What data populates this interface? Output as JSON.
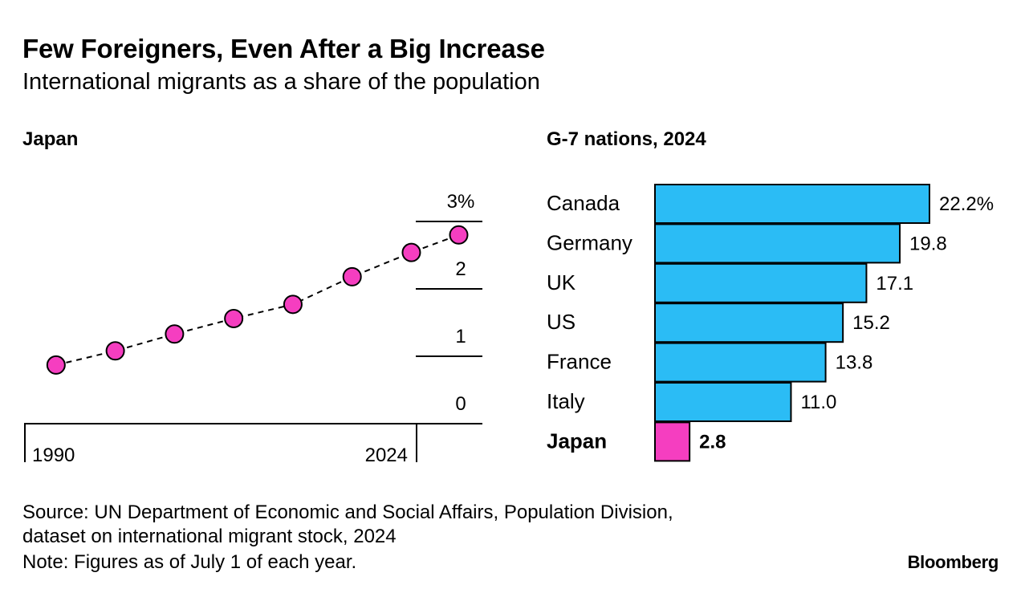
{
  "title": "Few Foreigners, Even After a Big Increase",
  "subtitle": "International migrants as a share of the population",
  "source_line1": "Source: UN Department of Economic and Social Affairs, Population Division,",
  "source_line2": "dataset on international migrant stock, 2024",
  "note": "Note: Figures as of July 1 of each year.",
  "logo": "Bloomberg",
  "colors": {
    "japan_pink": "#f53ec0",
    "bar_blue": "#2bbcf5",
    "ink": "#000000"
  },
  "chart_data": [
    {
      "type": "line",
      "title": "Japan",
      "x": [
        1990,
        1995,
        2000,
        2005,
        2010,
        2015,
        2020,
        2024
      ],
      "y": [
        0.87,
        1.08,
        1.33,
        1.56,
        1.77,
        2.18,
        2.54,
        2.8
      ],
      "xlim": [
        1987.3,
        2026
      ],
      "ylim": [
        0,
        3
      ],
      "x_tick_labels": [
        "1990",
        "2024"
      ],
      "y_tick_labels": [
        "0",
        "1",
        "2",
        "3%"
      ],
      "marker_color": "#f53ec0",
      "line_style": "dashed"
    },
    {
      "type": "bar",
      "orientation": "horizontal",
      "title": "G-7 nations, 2024",
      "categories": [
        "Canada",
        "Germany",
        "UK",
        "US",
        "France",
        "Italy",
        "Japan"
      ],
      "values": [
        22.2,
        19.8,
        17.1,
        15.2,
        13.8,
        11.0,
        2.8
      ],
      "value_labels": [
        "22.2%",
        "19.8",
        "17.1",
        "15.2",
        "13.8",
        "11.0",
        "2.8"
      ],
      "highlight": "Japan",
      "xlim": [
        0,
        22.2
      ]
    }
  ]
}
